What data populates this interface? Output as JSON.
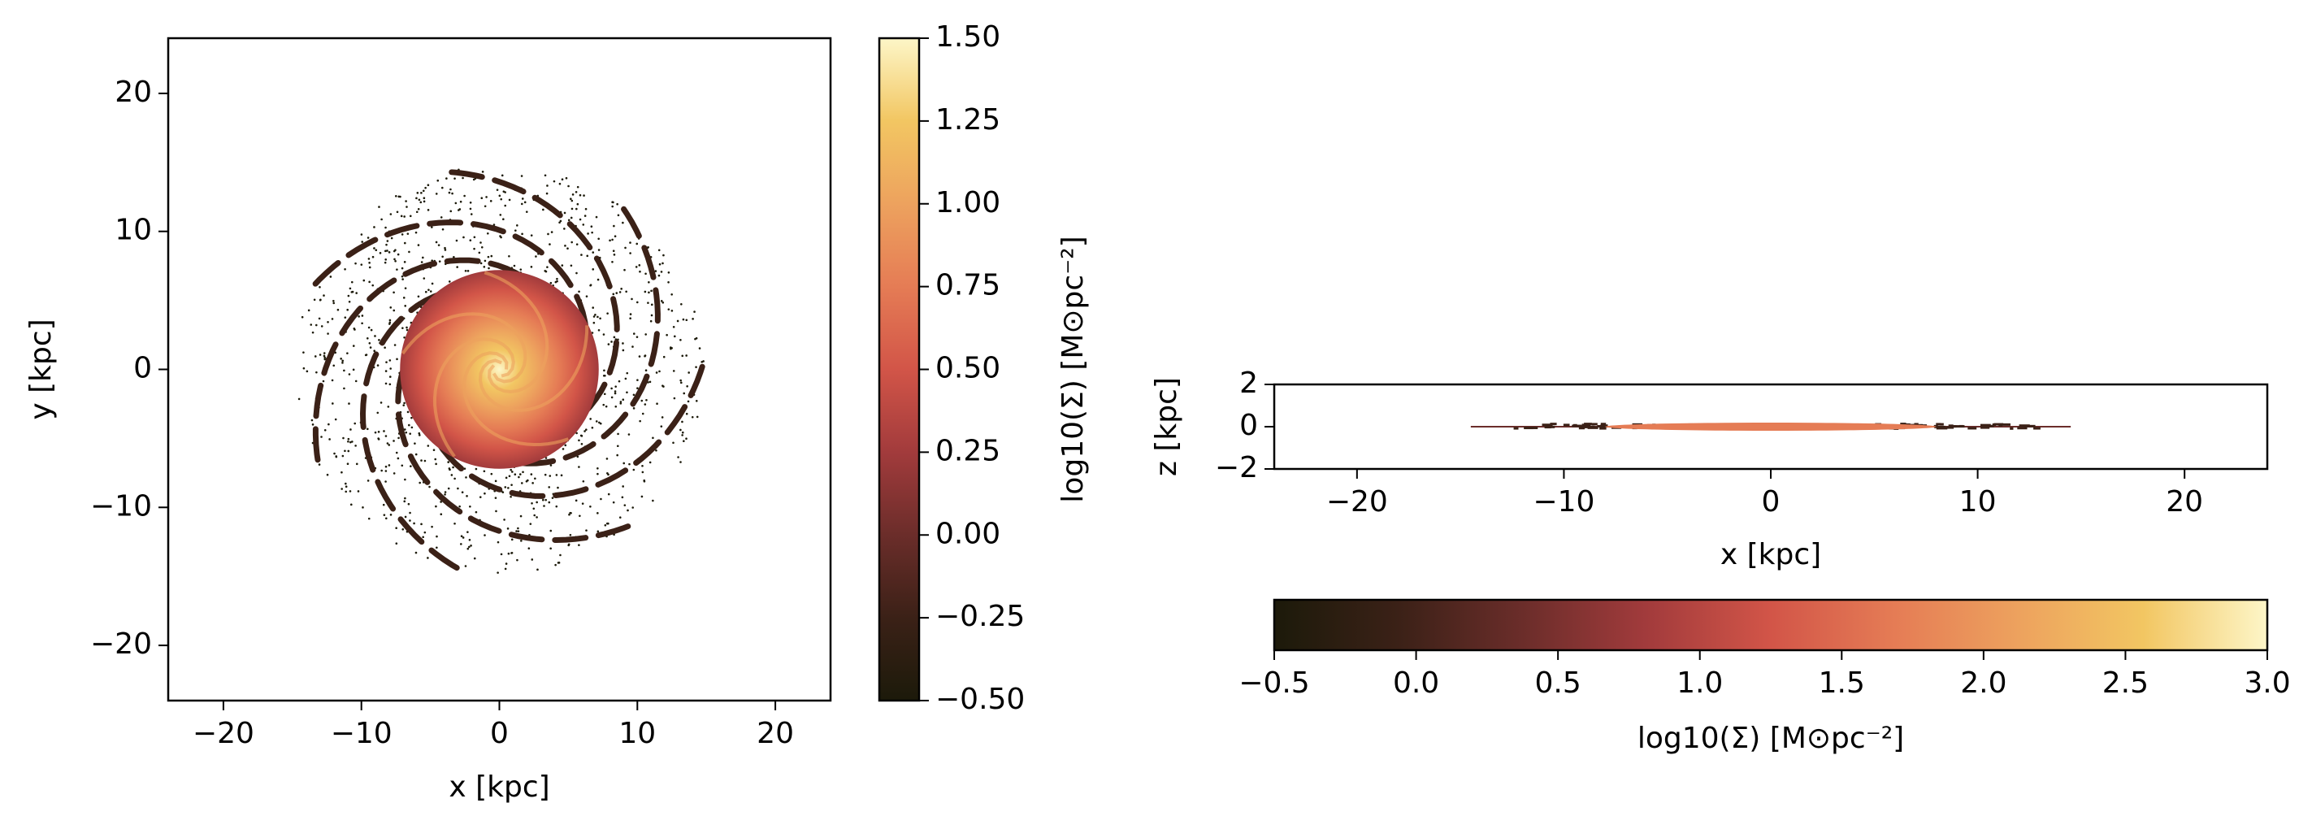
{
  "chart_data": [
    {
      "type": "image",
      "xlabel": "x [kpc]",
      "ylabel": "y [kpc]",
      "xlim": [
        -24,
        24
      ],
      "ylim": [
        -24,
        24
      ],
      "xticks": [
        {
          "value": -20,
          "label": "−20"
        },
        {
          "value": -10,
          "label": "−10"
        },
        0,
        10,
        20
      ],
      "yticks": [
        {
          "value": -20,
          "label": "−20"
        },
        {
          "value": -10,
          "label": "−10"
        },
        0,
        10,
        20
      ],
      "colormap": [
        "#1c1a0a",
        "#3b2117",
        "#6b2d2a",
        "#a23b3c",
        "#d25548",
        "#e57c55",
        "#eda25e",
        "#f2c662",
        "#fdf6c8"
      ],
      "colorbar": {
        "orientation": "vertical",
        "label": "log10(Σ) [M⊙pc⁻²]",
        "lim": [
          -0.5,
          1.5
        ],
        "ticks": [
          {
            "value": -0.5,
            "label": "−0.50"
          },
          {
            "value": -0.25,
            "label": "−0.25"
          },
          {
            "value": 0,
            "label": "0.00"
          },
          0.25,
          {
            "value": 0.5,
            "label": "0.50"
          },
          {
            "value": 0.75,
            "label": "0.75"
          },
          {
            "value": 1,
            "label": "1.00"
          },
          {
            "value": 1.25,
            "label": "1.25"
          },
          {
            "value": 1.5,
            "label": "1.50"
          }
        ]
      }
    },
    {
      "type": "image",
      "xlabel": "x [kpc]",
      "ylabel": "z [kpc]",
      "xlim": [
        -24,
        24
      ],
      "ylim": [
        -2,
        2
      ],
      "xticks": [
        {
          "value": -20,
          "label": "−20"
        },
        {
          "value": -10,
          "label": "−10"
        },
        0,
        10,
        20
      ],
      "yticks": [
        {
          "value": -2,
          "label": "−2"
        },
        0,
        2
      ],
      "colormap": [
        "#1c1a0a",
        "#3b2117",
        "#6b2d2a",
        "#a23b3c",
        "#d25548",
        "#e57c55",
        "#eda25e",
        "#f2c662",
        "#fdf6c8"
      ],
      "colorbar": {
        "orientation": "horizontal",
        "label": "log10(Σ) [M⊙pc⁻²]",
        "lim": [
          -0.5,
          3
        ],
        "ticks": [
          {
            "value": -0.5,
            "label": "−0.5"
          },
          {
            "value": 0,
            "label": "0.0"
          },
          0.5,
          {
            "value": 1,
            "label": "1.0"
          },
          1.5,
          {
            "value": 2,
            "label": "2.0"
          },
          2.5,
          {
            "value": 3,
            "label": "3.0"
          }
        ]
      }
    }
  ]
}
